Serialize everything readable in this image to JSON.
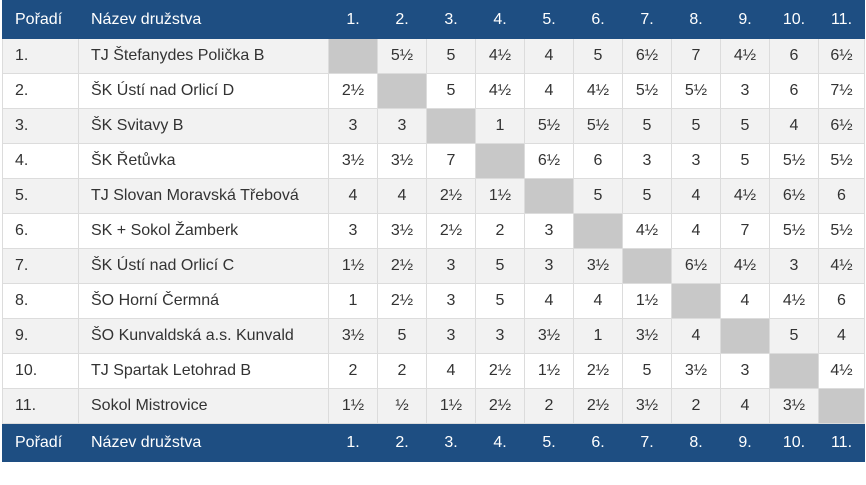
{
  "header": {
    "rank": "Pořadí",
    "team": "Název družstva",
    "cols": [
      "1.",
      "2.",
      "3.",
      "4.",
      "5.",
      "6.",
      "7.",
      "8.",
      "9.",
      "10.",
      "11."
    ]
  },
  "rows": [
    {
      "rank": "1.",
      "team": "TJ Štefanydes Polička B",
      "scores": [
        "",
        "5½",
        "5",
        "4½",
        "4",
        "5",
        "6½",
        "7",
        "4½",
        "6",
        "6½"
      ]
    },
    {
      "rank": "2.",
      "team": "ŠK Ústí nad Orlicí D",
      "scores": [
        "2½",
        "",
        "5",
        "4½",
        "4",
        "4½",
        "5½",
        "5½",
        "3",
        "6",
        "7½"
      ]
    },
    {
      "rank": "3.",
      "team": "ŠK Svitavy B",
      "scores": [
        "3",
        "3",
        "",
        "1",
        "5½",
        "5½",
        "5",
        "5",
        "5",
        "4",
        "6½"
      ]
    },
    {
      "rank": "4.",
      "team": "ŠK Řetůvka",
      "scores": [
        "3½",
        "3½",
        "7",
        "",
        "6½",
        "6",
        "3",
        "3",
        "5",
        "5½",
        "5½"
      ]
    },
    {
      "rank": "5.",
      "team": "TJ Slovan Moravská Třebová",
      "scores": [
        "4",
        "4",
        "2½",
        "1½",
        "",
        "5",
        "5",
        "4",
        "4½",
        "6½",
        "6"
      ]
    },
    {
      "rank": "6.",
      "team": "SK + Sokol Žamberk",
      "scores": [
        "3",
        "3½",
        "2½",
        "2",
        "3",
        "",
        "4½",
        "4",
        "7",
        "5½",
        "5½"
      ]
    },
    {
      "rank": "7.",
      "team": "ŠK Ústí nad Orlicí C",
      "scores": [
        "1½",
        "2½",
        "3",
        "5",
        "3",
        "3½",
        "",
        "6½",
        "4½",
        "3",
        "4½"
      ]
    },
    {
      "rank": "8.",
      "team": "ŠO Horní Čermná",
      "scores": [
        "1",
        "2½",
        "3",
        "5",
        "4",
        "4",
        "1½",
        "",
        "4",
        "4½",
        "6"
      ]
    },
    {
      "rank": "9.",
      "team": "ŠO Kunvaldská a.s. Kunvald",
      "scores": [
        "3½",
        "5",
        "3",
        "3",
        "3½",
        "1",
        "3½",
        "4",
        "",
        "5",
        "4"
      ]
    },
    {
      "rank": "10.",
      "team": "TJ Spartak Letohrad B",
      "scores": [
        "2",
        "2",
        "4",
        "2½",
        "1½",
        "2½",
        "5",
        "3½",
        "3",
        "",
        "4½"
      ]
    },
    {
      "rank": "11.",
      "team": "Sokol Mistrovice",
      "scores": [
        "1½",
        "½",
        "1½",
        "2½",
        "2",
        "2½",
        "3½",
        "2",
        "4",
        "3½",
        ""
      ]
    }
  ],
  "colors": {
    "header_bg": "#1e4e82",
    "diagonal": "#c8c8c8",
    "row_alt": "#f2f2f2"
  }
}
